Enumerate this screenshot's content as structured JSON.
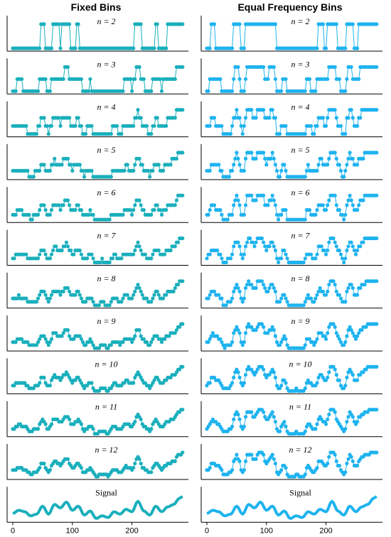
{
  "column_titles": [
    "Fixed Bins",
    "Equal Frequency Bins"
  ],
  "row_labels": [
    "n = 2",
    "n = 3",
    "n = 4",
    "n = 5",
    "n = 6",
    "n = 7",
    "n = 8",
    "n = 9",
    "n = 10",
    "n = 11",
    "n = 12",
    "Signal"
  ],
  "x_ticks": [
    "0",
    "100",
    "200"
  ],
  "colors": {
    "fixed": "#1aafbc",
    "equal": "#1eb3ef"
  },
  "chart_data": [
    {
      "type": "line",
      "title": "Fixed Bins",
      "x_range": [
        0,
        290
      ],
      "xticks": [
        0,
        100,
        200
      ],
      "signal_points": [
        [
          0,
          0.25
        ],
        [
          10,
          0.38
        ],
        [
          20,
          0.32
        ],
        [
          30,
          0.15
        ],
        [
          40,
          0.22
        ],
        [
          50,
          0.55
        ],
        [
          60,
          0.22
        ],
        [
          70,
          0.62
        ],
        [
          80,
          0.48
        ],
        [
          90,
          0.72
        ],
        [
          100,
          0.38
        ],
        [
          110,
          0.55
        ],
        [
          120,
          0.18
        ],
        [
          130,
          0.35
        ],
        [
          140,
          0.04
        ],
        [
          150,
          0.15
        ],
        [
          160,
          0.08
        ],
        [
          170,
          0.32
        ],
        [
          180,
          0.22
        ],
        [
          190,
          0.42
        ],
        [
          200,
          0.32
        ],
        [
          210,
          0.75
        ],
        [
          220,
          0.35
        ],
        [
          230,
          0.18
        ],
        [
          240,
          0.55
        ],
        [
          250,
          0.32
        ],
        [
          260,
          0.52
        ],
        [
          270,
          0.62
        ],
        [
          280,
          0.88
        ],
        [
          285,
          0.95
        ]
      ],
      "panels": [
        "n = 2",
        "n = 3",
        "n = 4",
        "n = 5",
        "n = 6",
        "n = 7",
        "n = 8",
        "n = 9",
        "n = 10",
        "n = 11",
        "n = 12",
        "Signal"
      ]
    },
    {
      "type": "line",
      "title": "Equal Frequency Bins",
      "x_range": [
        0,
        290
      ],
      "xticks": [
        0,
        100,
        200
      ],
      "signal_points": [
        [
          0,
          0.25
        ],
        [
          10,
          0.38
        ],
        [
          20,
          0.32
        ],
        [
          30,
          0.15
        ],
        [
          40,
          0.22
        ],
        [
          50,
          0.55
        ],
        [
          60,
          0.22
        ],
        [
          70,
          0.62
        ],
        [
          80,
          0.48
        ],
        [
          90,
          0.72
        ],
        [
          100,
          0.38
        ],
        [
          110,
          0.55
        ],
        [
          120,
          0.18
        ],
        [
          130,
          0.35
        ],
        [
          140,
          0.04
        ],
        [
          150,
          0.15
        ],
        [
          160,
          0.08
        ],
        [
          170,
          0.32
        ],
        [
          180,
          0.22
        ],
        [
          190,
          0.42
        ],
        [
          200,
          0.32
        ],
        [
          210,
          0.75
        ],
        [
          220,
          0.35
        ],
        [
          230,
          0.18
        ],
        [
          240,
          0.55
        ],
        [
          250,
          0.32
        ],
        [
          260,
          0.52
        ],
        [
          270,
          0.62
        ],
        [
          280,
          0.88
        ],
        [
          285,
          0.95
        ]
      ],
      "panels": [
        "n = 2",
        "n = 3",
        "n = 4",
        "n = 5",
        "n = 6",
        "n = 7",
        "n = 8",
        "n = 9",
        "n = 10",
        "n = 11",
        "n = 12",
        "Signal"
      ]
    }
  ]
}
